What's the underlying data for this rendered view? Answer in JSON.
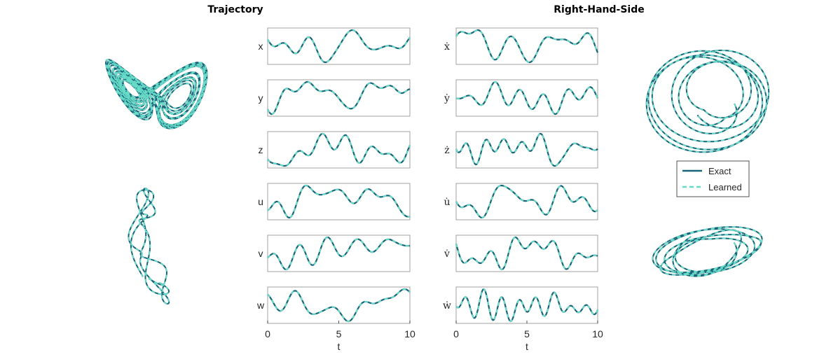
{
  "colors": {
    "exact": "#1a6479",
    "learned": "#66dcc8",
    "axis": "#262626",
    "box": "#8a8a8a"
  },
  "titles": {
    "left": "Trajectory",
    "right": "Right-Hand-Side"
  },
  "legend": {
    "exact": "Exact",
    "learned": "Learned"
  },
  "chart_data": [
    {
      "type": "line",
      "title": "Trajectory",
      "xlabel": "t",
      "xlim": [
        0,
        10
      ],
      "xticks": [
        "0",
        "5",
        "10"
      ],
      "legend_placement": "right",
      "series": [
        {
          "name": "Exact",
          "style": "solid"
        },
        {
          "name": "Learned",
          "style": "dashed"
        }
      ],
      "panels": [
        {
          "label": "x"
        },
        {
          "label": "y"
        },
        {
          "label": "z"
        },
        {
          "label": "u"
        },
        {
          "label": "v"
        },
        {
          "label": "w"
        }
      ]
    },
    {
      "type": "line",
      "title": "Right-Hand-Side",
      "xlabel": "t",
      "xlim": [
        0,
        10
      ],
      "xticks": [
        "0",
        "5",
        "10"
      ],
      "series": [
        {
          "name": "Exact",
          "style": "solid"
        },
        {
          "name": "Learned",
          "style": "dashed"
        }
      ],
      "panels": [
        {
          "label": "ẋ"
        },
        {
          "label": "ẏ"
        },
        {
          "label": "ż"
        },
        {
          "label": "u̇"
        },
        {
          "label": "v̇"
        },
        {
          "label": "ẇ"
        }
      ]
    }
  ]
}
